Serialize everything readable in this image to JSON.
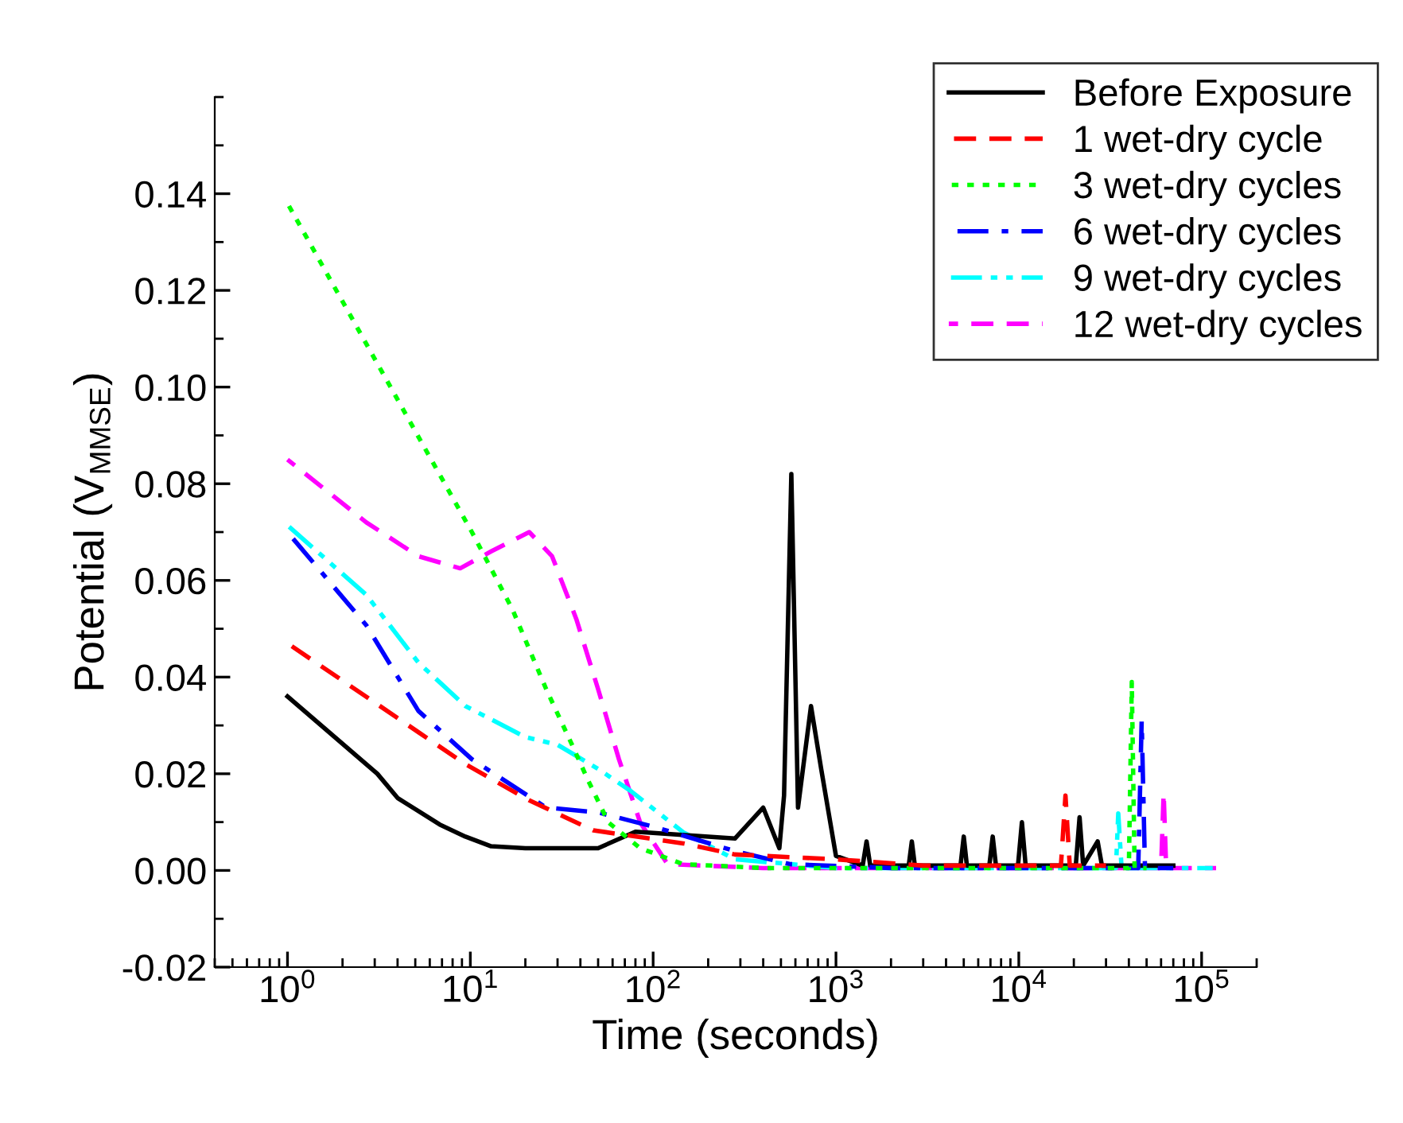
{
  "chart_data": {
    "type": "line",
    "xlabel": "Time (seconds)",
    "ylabel": "Potential (V$_{MMSE}$)",
    "log": "x",
    "xlim": [
      0.4,
      200000
    ],
    "ylim": [
      -0.02,
      0.16
    ],
    "xticks": [
      {
        "value": 1,
        "label": "10$^{0}$"
      },
      {
        "value": 10,
        "label": "10$^{1}$"
      },
      {
        "value": 100,
        "label": "10$^{2}$"
      },
      {
        "value": 1000,
        "label": "10$^{3}$"
      },
      {
        "value": 10000,
        "label": "10$^{4}$"
      },
      {
        "value": 100000,
        "label": "10$^{5}$"
      }
    ],
    "yticks": [
      {
        "value": -0.02,
        "label": "-0.02"
      },
      {
        "value": 0,
        "label": "0.00"
      },
      {
        "value": 0.02,
        "label": "0.02"
      },
      {
        "value": 0.04,
        "label": "0.04"
      },
      {
        "value": 0.06,
        "label": "0.06"
      },
      {
        "value": 0.08,
        "label": "0.08"
      },
      {
        "value": 0.1,
        "label": "0.10"
      },
      {
        "value": 0.12,
        "label": "0.12"
      },
      {
        "value": 0.14,
        "label": "0.14"
      }
    ],
    "grid": false,
    "legend": "top right",
    "series": [
      {
        "name": "Before Exposure",
        "color": "#000000",
        "line_style": "solid",
        "x": [
          1,
          3.1,
          4,
          6.8,
          9.4,
          13,
          20,
          50,
          80,
          280,
          400,
          490,
          520,
          570,
          620,
          730,
          830,
          1000,
          1400,
          1470,
          1540,
          2500,
          2600,
          2700,
          4800,
          5000,
          5200,
          6900,
          7200,
          7500,
          9900,
          10400,
          10900,
          20500,
          21500,
          22500,
          27000,
          28500,
          70000
        ],
        "values": [
          0.036,
          0.02,
          0.015,
          0.0095,
          0.007,
          0.005,
          0.0046,
          0.0046,
          0.008,
          0.0066,
          0.013,
          0.0046,
          0.0155,
          0.082,
          0.013,
          0.034,
          0.021,
          0.003,
          0.001,
          0.006,
          0.001,
          0.001,
          0.006,
          0.001,
          0.001,
          0.007,
          0.001,
          0.001,
          0.007,
          0.001,
          0.001,
          0.01,
          0.001,
          0.001,
          0.011,
          0.001,
          0.006,
          0.001,
          0.001
        ]
      },
      {
        "name": "1 wet-dry cycle",
        "color": "#ff0000",
        "line_style": "dashed",
        "x": [
          1,
          5.2,
          9.4,
          21,
          47,
          146,
          280,
          1000,
          3000,
          17000,
          18000,
          19000,
          30000
        ],
        "values": [
          0.047,
          0.0286,
          0.022,
          0.0145,
          0.0083,
          0.0056,
          0.0033,
          0.0023,
          0.001,
          0.001,
          0.0155,
          0.001,
          0.001
        ]
      },
      {
        "name": "3 wet-dry cycles",
        "color": "#00ff00",
        "line_style": "dotted",
        "x": [
          1,
          10.2,
          17,
          26,
          36,
          44,
          57,
          85,
          146,
          400,
          40000,
          41500,
          43000,
          50000
        ],
        "values": [
          0.138,
          0.07,
          0.054,
          0.0375,
          0.026,
          0.0187,
          0.0099,
          0.0046,
          0.0013,
          0.0005,
          0.0005,
          0.039,
          0.0005,
          0.0005
        ]
      },
      {
        "name": "6 wet-dry cycles",
        "color": "#0000ff",
        "line_style": "dashdot",
        "x": [
          1,
          2.7,
          5.2,
          10.2,
          26,
          50,
          104,
          280,
          560,
          2000,
          45000,
          47000,
          49000,
          70000
        ],
        "values": [
          0.07,
          0.0507,
          0.033,
          0.023,
          0.013,
          0.012,
          0.0089,
          0.004,
          0.0013,
          0.0005,
          0.0005,
          0.031,
          0.0005,
          0.0005
        ]
      },
      {
        "name": "9 wet-dry cycles",
        "color": "#00ffff",
        "line_style": "dashdotdot",
        "x": [
          1,
          2.7,
          5.2,
          9.4,
          20,
          30,
          50,
          75,
          146,
          280,
          1000,
          34000,
          35000,
          36500,
          115000
        ],
        "values": [
          0.0714,
          0.057,
          0.043,
          0.034,
          0.0276,
          0.026,
          0.021,
          0.0165,
          0.0079,
          0.0023,
          0.0005,
          0.0005,
          0.0118,
          0.0005,
          0.0005
        ]
      },
      {
        "name": "12 wet-dry cycles",
        "color": "#ff00ff",
        "line_style": "dashed",
        "x": [
          1,
          2.7,
          5.2,
          8.8,
          13,
          21,
          28,
          38,
          50,
          65,
          85,
          120,
          400,
          60000,
          62000,
          64000,
          120000
        ],
        "values": [
          0.085,
          0.072,
          0.065,
          0.0625,
          0.066,
          0.07,
          0.065,
          0.052,
          0.0375,
          0.023,
          0.0099,
          0.0013,
          0.0005,
          0.0005,
          0.016,
          0.0005,
          0.0005
        ]
      }
    ]
  }
}
